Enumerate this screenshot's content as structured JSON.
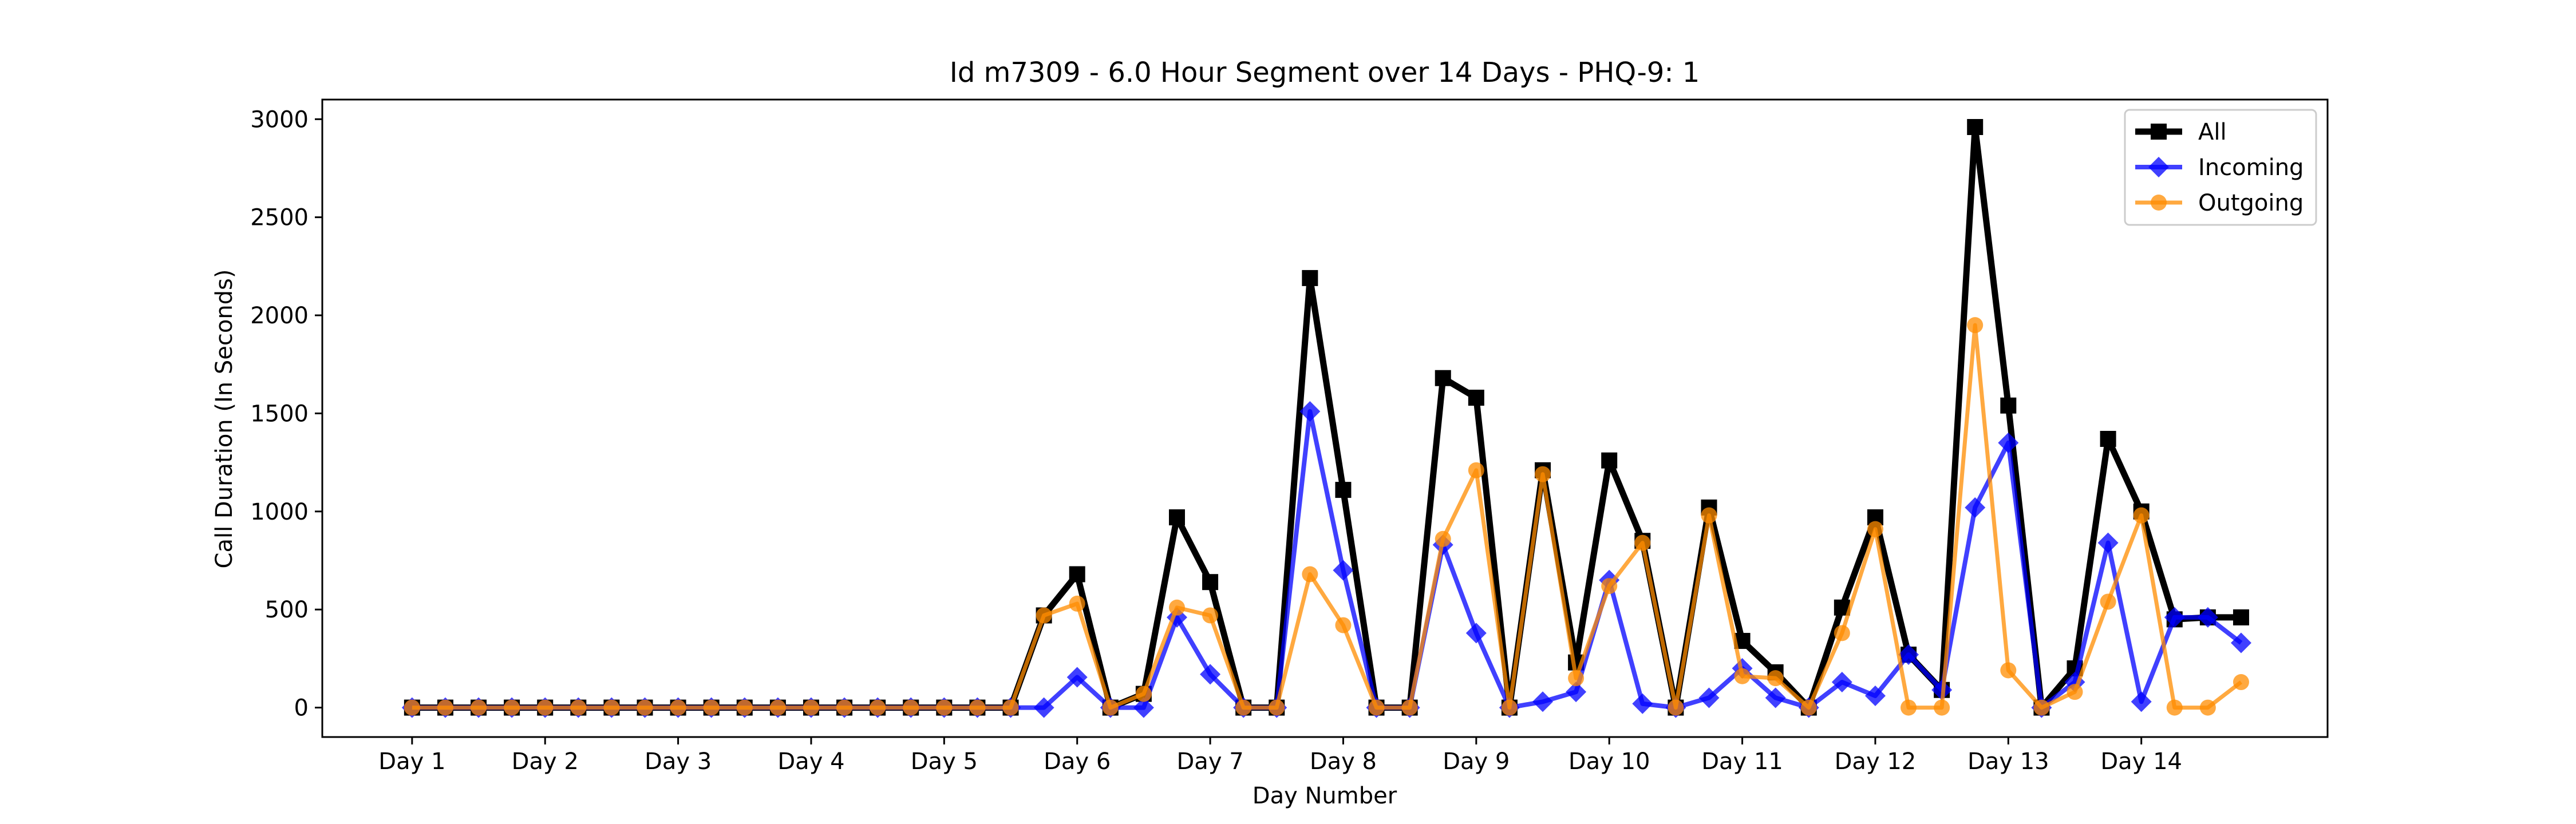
{
  "chart_data": {
    "type": "line",
    "title": "Id m7309 - 6.0 Hour Segment over 14 Days - PHQ-9: 1",
    "xlabel": "Day Number",
    "ylabel": "Call Duration (In Seconds)",
    "ylim": [
      -150,
      3100
    ],
    "xlim": [
      -2.7,
      57.6
    ],
    "yticks": [
      0,
      500,
      1000,
      1500,
      2000,
      2500,
      3000
    ],
    "xtick_labels": [
      "Day 1",
      "Day 2",
      "Day 3",
      "Day 4",
      "Day 5",
      "Day 6",
      "Day 7",
      "Day 8",
      "Day 9",
      "Day 10",
      "Day 11",
      "Day 12",
      "Day 13",
      "Day 14"
    ],
    "xtick_positions": [
      0,
      4,
      8,
      12,
      16,
      20,
      24,
      28,
      32,
      36,
      40,
      44,
      48,
      52
    ],
    "grid": false,
    "legend_position": "top-right",
    "x": [
      0,
      1,
      2,
      3,
      4,
      5,
      6,
      7,
      8,
      9,
      10,
      11,
      12,
      13,
      14,
      15,
      16,
      17,
      18,
      19,
      20,
      21,
      22,
      23,
      24,
      25,
      26,
      27,
      28,
      29,
      30,
      31,
      32,
      33,
      34,
      35,
      36,
      37,
      38,
      39,
      40,
      41,
      42,
      43,
      44,
      45,
      46,
      47,
      48,
      49,
      50,
      51,
      52,
      53,
      54,
      55
    ],
    "series": [
      {
        "name": "All",
        "color": "#000000",
        "marker": "square",
        "values": [
          0,
          0,
          0,
          0,
          0,
          0,
          0,
          0,
          0,
          0,
          0,
          0,
          0,
          0,
          0,
          0,
          0,
          0,
          0,
          470,
          680,
          0,
          70,
          970,
          640,
          0,
          0,
          2190,
          1110,
          0,
          0,
          1680,
          1580,
          0,
          1210,
          230,
          1260,
          850,
          0,
          1020,
          340,
          180,
          0,
          510,
          970,
          270,
          90,
          2960,
          1540,
          0,
          200,
          1370,
          1000,
          450,
          460,
          460
        ]
      },
      {
        "name": "Incoming",
        "color": "#0000ff",
        "marker": "diamond",
        "values": [
          0,
          0,
          0,
          0,
          0,
          0,
          0,
          0,
          0,
          0,
          0,
          0,
          0,
          0,
          0,
          0,
          0,
          0,
          0,
          0,
          155,
          0,
          0,
          460,
          170,
          0,
          0,
          1510,
          700,
          0,
          0,
          830,
          380,
          0,
          30,
          80,
          650,
          20,
          0,
          50,
          200,
          50,
          0,
          130,
          60,
          270,
          90,
          1020,
          1350,
          0,
          130,
          840,
          30,
          460,
          460,
          330
        ]
      },
      {
        "name": "Outgoing",
        "color": "#ff8c00",
        "marker": "circle",
        "values": [
          0,
          0,
          0,
          0,
          0,
          0,
          0,
          0,
          0,
          0,
          0,
          0,
          0,
          0,
          0,
          0,
          0,
          0,
          0,
          470,
          530,
          0,
          70,
          510,
          470,
          0,
          0,
          680,
          420,
          0,
          0,
          860,
          1210,
          0,
          1190,
          150,
          620,
          840,
          0,
          980,
          160,
          150,
          0,
          380,
          910,
          0,
          0,
          1950,
          190,
          0,
          80,
          540,
          980,
          0,
          0,
          130
        ]
      }
    ]
  }
}
